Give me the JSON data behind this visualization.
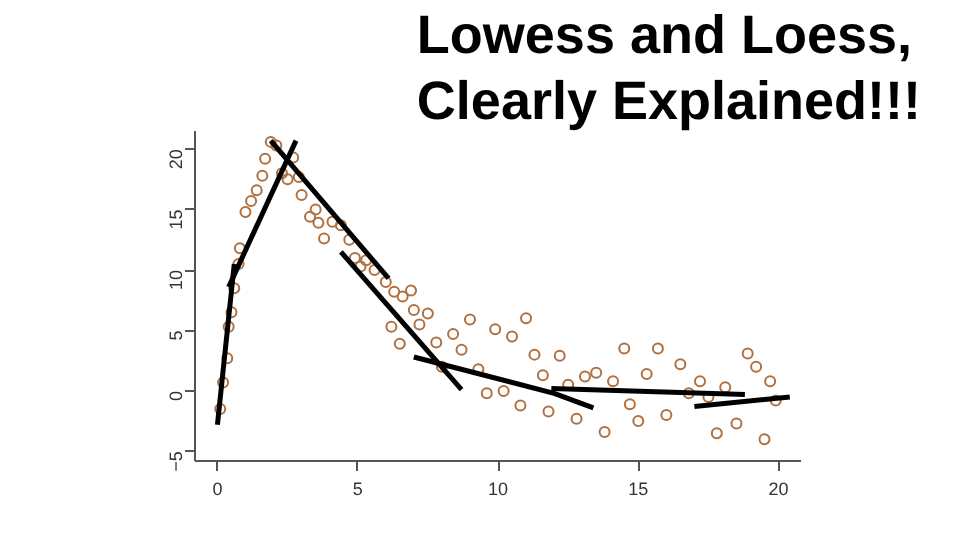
{
  "chart_data": {
    "type": "scatter",
    "title": "Lowess and Loess,\nClearly Explained!!!",
    "xlim": [
      -0.8,
      20.8
    ],
    "ylim": [
      -5.8,
      21.5
    ],
    "xticks": [
      0,
      5,
      10,
      15,
      20
    ],
    "yticks": [
      -5,
      0,
      5,
      10,
      15,
      20
    ],
    "grid": false,
    "line_style": "solid",
    "series": [
      {
        "marker": "circle",
        "color": "#b07040",
        "x": [
          0.1,
          0.2,
          0.35,
          0.4,
          0.5,
          0.6,
          0.75,
          0.8,
          1.0,
          1.2,
          1.4,
          1.6,
          1.7,
          1.9,
          2.1,
          2.3,
          2.5,
          2.7,
          2.9,
          3.0,
          3.3,
          3.5,
          3.6,
          3.8,
          4.1,
          4.4,
          4.7,
          4.9,
          5.1,
          5.3,
          5.6,
          6.0,
          6.3,
          6.6,
          6.9,
          6.2,
          6.5,
          7.0,
          7.2,
          7.5,
          7.8,
          8.0,
          8.4,
          8.7,
          9.0,
          9.3,
          9.6,
          9.9,
          10.2,
          10.5,
          10.8,
          11.0,
          11.3,
          11.6,
          11.8,
          12.2,
          12.5,
          12.8,
          13.1,
          13.5,
          13.8,
          14.1,
          14.5,
          14.7,
          15.0,
          15.3,
          15.7,
          16.0,
          16.5,
          16.8,
          17.2,
          17.5,
          17.8,
          18.1,
          18.5,
          18.9,
          19.2,
          19.5,
          19.7,
          19.9
        ],
        "values": [
          -1.5,
          0.7,
          2.7,
          5.3,
          6.5,
          8.5,
          10.5,
          11.8,
          14.8,
          15.7,
          16.6,
          17.8,
          19.2,
          20.6,
          20.3,
          18,
          17.5,
          19.3,
          17.7,
          16.2,
          14.4,
          15,
          13.9,
          12.6,
          14,
          13.7,
          12.5,
          11,
          10.3,
          10.8,
          10,
          9,
          8.2,
          7.8,
          8.3,
          5.3,
          3.9,
          6.7,
          5.5,
          6.4,
          4,
          2,
          4.7,
          3.4,
          5.9,
          1.8,
          -0.2,
          5.1,
          0,
          4.5,
          -1.2,
          6,
          3,
          1.3,
          -1.7,
          2.9,
          0.5,
          -2.3,
          1.2,
          1.5,
          -3.4,
          0.8,
          3.5,
          -1.1,
          -2.5,
          1.4,
          3.5,
          -2.0,
          2.2,
          -0.2,
          0.8,
          -0.5,
          -3.5,
          0.3,
          -2.7,
          3.1,
          2.0,
          -4,
          0.8,
          -0.8
        ]
      },
      {
        "type": "line",
        "color": "#000000",
        "x": [
          0.0,
          0.6
        ],
        "values": [
          -2.8,
          10.5
        ]
      },
      {
        "type": "line",
        "color": "#000000",
        "x": [
          0.4,
          2.8
        ],
        "values": [
          8.6,
          20.7
        ]
      },
      {
        "type": "line",
        "color": "#000000",
        "x": [
          1.9,
          6.1
        ],
        "values": [
          20.7,
          9.3
        ]
      },
      {
        "type": "line",
        "color": "#000000",
        "x": [
          4.4,
          8.7
        ],
        "values": [
          11.5,
          0.1
        ]
      },
      {
        "type": "line",
        "color": "#000000",
        "x": [
          7.0,
          12.0,
          13.4
        ],
        "values": [
          2.8,
          -0.2,
          -1.4
        ]
      },
      {
        "type": "line",
        "color": "#000000",
        "x": [
          11.9,
          18.8
        ],
        "values": [
          0.2,
          -0.3
        ]
      },
      {
        "type": "line",
        "color": "#000000",
        "x": [
          17.0,
          20.4
        ],
        "values": [
          -1.3,
          -0.5
        ]
      }
    ]
  }
}
